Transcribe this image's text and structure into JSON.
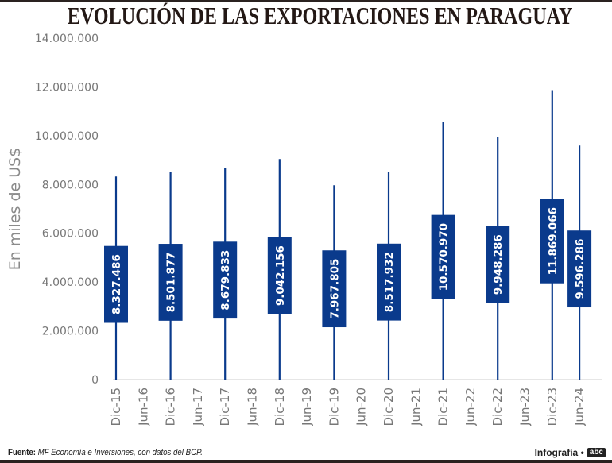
{
  "header": {
    "title": "EVOLUCIÓN DE LAS EXPORTACIONES EN PARAGUAY"
  },
  "footer": {
    "source_label": "Fuente:",
    "source_text": "MF Economía e Inversiones, con datos del BCP.",
    "credit": "Infografía •",
    "logo": "abc"
  },
  "colors": {
    "bar": "#0a3a8c",
    "axis_text": "#777777",
    "baseline": "#dddddd"
  },
  "chart_data": {
    "type": "bar",
    "title": "EVOLUCIÓN DE LAS EXPORTACIONES EN PARAGUAY",
    "xlabel": "",
    "ylabel": "En miles de US$",
    "ylim": [
      0,
      14000000
    ],
    "yticks": [
      0,
      2000000,
      4000000,
      6000000,
      8000000,
      10000000,
      12000000,
      14000000
    ],
    "ytick_labels": [
      "0",
      "2.000.000",
      "4.000.000",
      "6.000.000",
      "8.000.000",
      "10.000.000",
      "12.000.000",
      "14.000.000"
    ],
    "grid": false,
    "legend": "none",
    "categories": [
      "Dic-15",
      "Jun-16",
      "Dic-16",
      "Jun-17",
      "Dic-17",
      "Jun-18",
      "Dic-18",
      "Jun-19",
      "Dic-19",
      "Jun-20",
      "Dic-20",
      "Jun-21",
      "Dic-21",
      "Jun-22",
      "Dic-22",
      "Jun-23",
      "Dic-23",
      "Jun-24"
    ],
    "series": [
      {
        "name": "Exportaciones",
        "categories": [
          "Dic-15",
          "Dic-16",
          "Dic-17",
          "Dic-18",
          "Dic-19",
          "Dic-20",
          "Dic-21",
          "Dic-22",
          "Dic-23",
          "Jun-24"
        ],
        "values": [
          8327486,
          8501877,
          8679833,
          9042156,
          7967805,
          8517932,
          10570970,
          9948286,
          11869066,
          9596286
        ],
        "labels": [
          "8.327.486",
          "8.501.877",
          "8.679.833",
          "9.042.156",
          "7.967.805",
          "8.517.932",
          "10.570.970",
          "9.948.286",
          "11.869.066",
          "9.596.286"
        ]
      }
    ]
  }
}
